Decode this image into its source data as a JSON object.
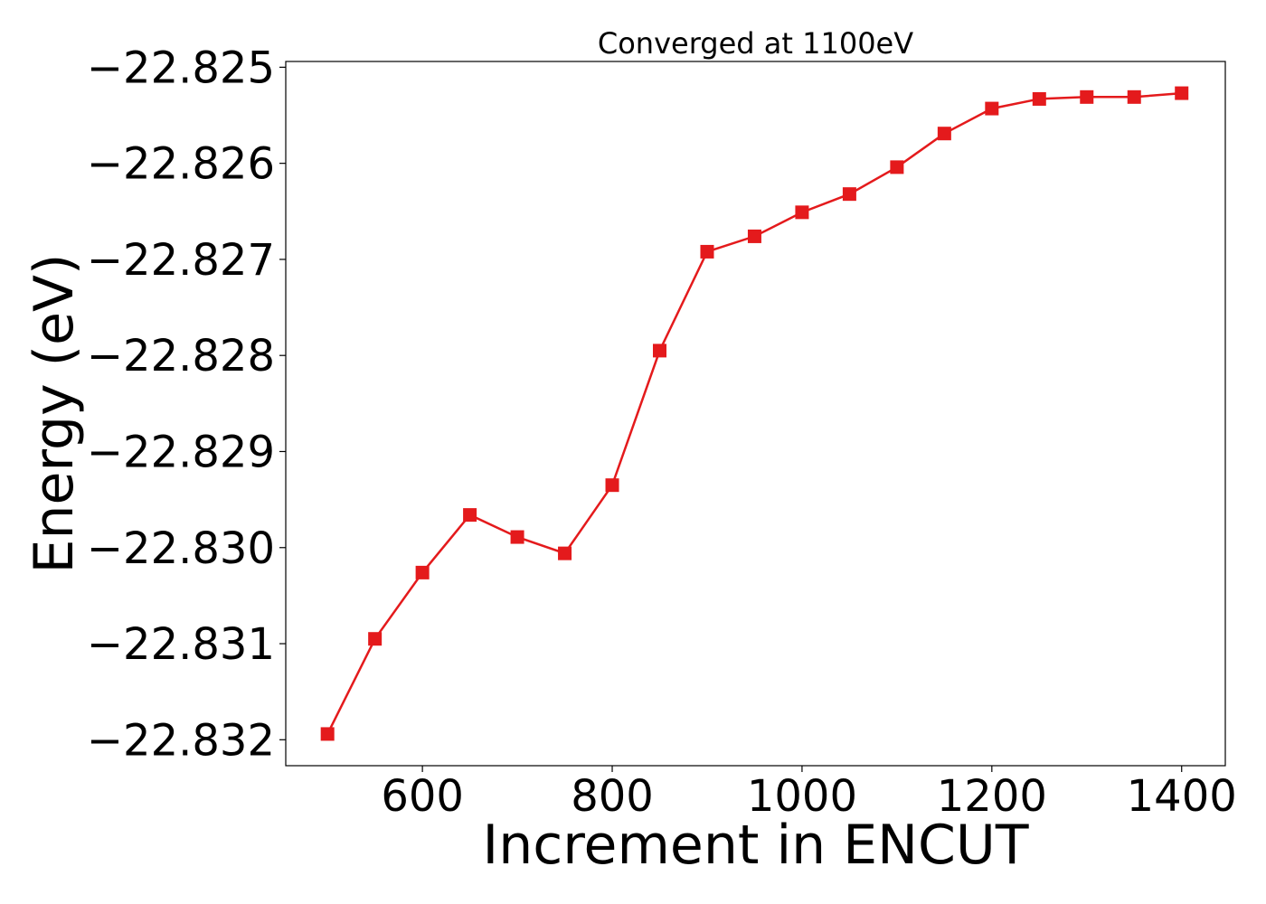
{
  "chart_data": {
    "type": "line",
    "title": "Converged at 1100eV",
    "xlabel": "Increment in ENCUT",
    "ylabel": "Energy (eV)",
    "xlim": [
      456,
      1446
    ],
    "ylim": [
      -22.83227,
      -22.82494
    ],
    "xticks": [
      600,
      800,
      1000,
      1200,
      1400
    ],
    "yticks": [
      -22.825,
      -22.826,
      -22.827,
      -22.828,
      -22.829,
      -22.83,
      -22.831,
      -22.832
    ],
    "xtick_labels": [
      "600",
      "800",
      "1000",
      "1200",
      "1400"
    ],
    "ytick_labels": [
      "−22.825",
      "−22.826",
      "−22.827",
      "−22.828",
      "−22.829",
      "−22.830",
      "−22.831",
      "−22.832"
    ],
    "grid": false,
    "series": [
      {
        "color": "#e41a1c",
        "marker": "square",
        "x": [
          500,
          550,
          600,
          650,
          700,
          750,
          800,
          850,
          900,
          950,
          1000,
          1050,
          1100,
          1150,
          1200,
          1250,
          1300,
          1350,
          1400
        ],
        "y": [
          -22.83194,
          -22.83095,
          -22.83026,
          -22.82966,
          -22.82989,
          -22.83006,
          -22.82935,
          -22.82795,
          -22.82692,
          -22.82676,
          -22.82651,
          -22.82632,
          -22.82604,
          -22.82569,
          -22.82543,
          -22.82533,
          -22.82531,
          -22.82531,
          -22.82527
        ]
      }
    ]
  }
}
